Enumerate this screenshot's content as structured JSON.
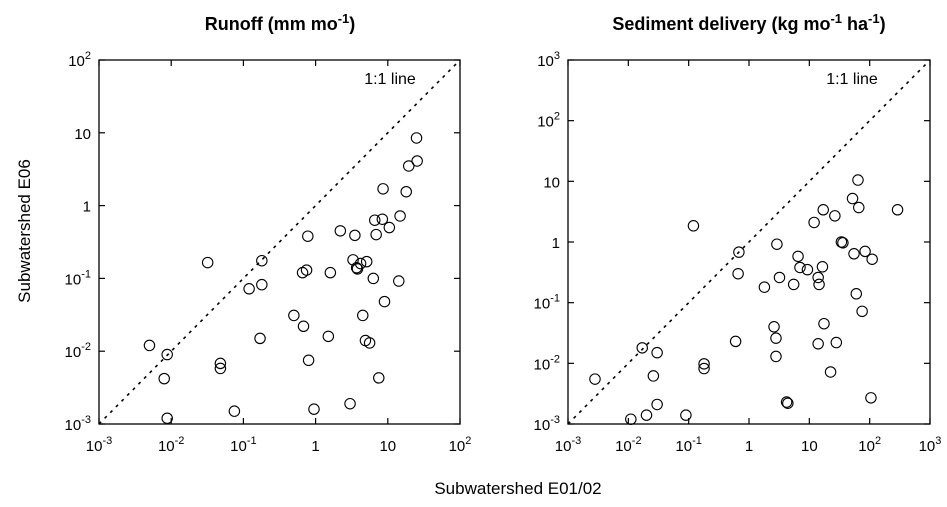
{
  "figure": {
    "xlabel": "Subwatershed E01/02",
    "ylabel": "Subwatershed E06"
  },
  "chart_data": [
    {
      "type": "scatter",
      "title": "Runoff (mm mo",
      "title_sup": "-1",
      "title_end": ")",
      "xscale": "log",
      "yscale": "log",
      "xlim": [
        0.001,
        100
      ],
      "ylim": [
        0.001,
        100
      ],
      "x_ticks": [
        {
          "base": "10",
          "exp": "-3"
        },
        {
          "base": "10",
          "exp": "-2"
        },
        {
          "base": "10",
          "exp": "-1"
        },
        {
          "base": "1",
          "exp": ""
        },
        {
          "base": "10",
          "exp": ""
        },
        {
          "base": "10",
          "exp": "2"
        }
      ],
      "y_ticks": [
        {
          "base": "10",
          "exp": "-3"
        },
        {
          "base": "10",
          "exp": "-2"
        },
        {
          "base": "10",
          "exp": "-1"
        },
        {
          "base": "1",
          "exp": ""
        },
        {
          "base": "10",
          "exp": ""
        },
        {
          "base": "10",
          "exp": "2"
        }
      ],
      "reference_line": "1:1 line",
      "points": [
        [
          0.005,
          0.012
        ],
        [
          0.008,
          0.0042
        ],
        [
          0.0088,
          0.009
        ],
        [
          0.0088,
          0.0012
        ],
        [
          0.032,
          0.165
        ],
        [
          0.048,
          0.0068
        ],
        [
          0.048,
          0.0058
        ],
        [
          0.075,
          0.0015
        ],
        [
          0.12,
          0.072
        ],
        [
          0.17,
          0.015
        ],
        [
          0.18,
          0.082
        ],
        [
          0.18,
          0.175
        ],
        [
          0.5,
          0.031
        ],
        [
          0.66,
          0.12
        ],
        [
          0.68,
          0.022
        ],
        [
          0.75,
          0.13
        ],
        [
          0.78,
          0.38
        ],
        [
          0.8,
          0.0075
        ],
        [
          0.95,
          0.0016
        ],
        [
          1.5,
          0.016
        ],
        [
          1.6,
          0.12
        ],
        [
          2.2,
          0.45
        ],
        [
          3.0,
          0.0019
        ],
        [
          3.3,
          0.18
        ],
        [
          3.5,
          0.39
        ],
        [
          3.7,
          0.14
        ],
        [
          3.8,
          0.135
        ],
        [
          4.2,
          0.16
        ],
        [
          4.5,
          0.031
        ],
        [
          4.9,
          0.014
        ],
        [
          5.1,
          0.17
        ],
        [
          5.6,
          0.013
        ],
        [
          6.3,
          0.1
        ],
        [
          6.6,
          0.63
        ],
        [
          6.9,
          0.4
        ],
        [
          7.5,
          0.0043
        ],
        [
          8.4,
          0.65
        ],
        [
          8.6,
          1.7
        ],
        [
          9.0,
          0.048
        ],
        [
          10.5,
          0.5
        ],
        [
          14.2,
          0.092
        ],
        [
          14.8,
          0.72
        ],
        [
          18.0,
          1.55
        ],
        [
          19.5,
          3.5
        ],
        [
          25.0,
          8.5
        ],
        [
          25.5,
          4.1
        ]
      ]
    },
    {
      "type": "scatter",
      "title": "Sediment delivery (kg mo",
      "title_sup": "-1",
      "title_mid": " ha",
      "title_sup2": "-1",
      "title_end": ")",
      "xscale": "log",
      "yscale": "log",
      "xlim": [
        0.001,
        1000
      ],
      "ylim": [
        0.001,
        1000
      ],
      "x_ticks": [
        {
          "base": "10",
          "exp": "-3"
        },
        {
          "base": "10",
          "exp": "-2"
        },
        {
          "base": "10",
          "exp": "-1"
        },
        {
          "base": "1",
          "exp": ""
        },
        {
          "base": "10",
          "exp": ""
        },
        {
          "base": "10",
          "exp": "2"
        },
        {
          "base": "10",
          "exp": "3"
        }
      ],
      "y_ticks": [
        {
          "base": "10",
          "exp": "-3"
        },
        {
          "base": "10",
          "exp": "-2"
        },
        {
          "base": "10",
          "exp": "-1"
        },
        {
          "base": "1",
          "exp": ""
        },
        {
          "base": "10",
          "exp": ""
        },
        {
          "base": "10",
          "exp": "2"
        },
        {
          "base": "10",
          "exp": "3"
        }
      ],
      "reference_line": "1:1 line",
      "points": [
        [
          0.0028,
          0.0055
        ],
        [
          0.011,
          0.0012
        ],
        [
          0.017,
          0.018
        ],
        [
          0.02,
          0.0014
        ],
        [
          0.026,
          0.0062
        ],
        [
          0.03,
          0.015
        ],
        [
          0.03,
          0.0021
        ],
        [
          0.09,
          0.0014
        ],
        [
          0.12,
          1.85
        ],
        [
          0.18,
          0.0098
        ],
        [
          0.18,
          0.0082
        ],
        [
          0.6,
          0.023
        ],
        [
          0.66,
          0.3
        ],
        [
          0.68,
          0.68
        ],
        [
          1.8,
          0.18
        ],
        [
          2.6,
          0.04
        ],
        [
          2.8,
          0.026
        ],
        [
          2.8,
          0.013
        ],
        [
          2.9,
          0.92
        ],
        [
          3.2,
          0.26
        ],
        [
          4.2,
          0.0023
        ],
        [
          4.4,
          0.0022
        ],
        [
          5.5,
          0.2
        ],
        [
          6.5,
          0.58
        ],
        [
          7.0,
          0.38
        ],
        [
          9.3,
          0.35
        ],
        [
          12.0,
          2.1
        ],
        [
          14.0,
          0.26
        ],
        [
          14.0,
          0.021
        ],
        [
          14.5,
          0.2
        ],
        [
          16.5,
          0.39
        ],
        [
          17.0,
          3.4
        ],
        [
          17.5,
          0.045
        ],
        [
          22.5,
          0.0072
        ],
        [
          26.5,
          2.7
        ],
        [
          28.0,
          0.022
        ],
        [
          34.0,
          1.0
        ],
        [
          36.0,
          0.97
        ],
        [
          52.0,
          5.2
        ],
        [
          55.0,
          0.64
        ],
        [
          60.0,
          0.14
        ],
        [
          64.0,
          10.5
        ],
        [
          66.0,
          3.7
        ],
        [
          75.0,
          0.072
        ],
        [
          84.0,
          0.7
        ],
        [
          105.0,
          0.0027
        ],
        [
          110.0,
          0.52
        ],
        [
          290.0,
          3.4
        ]
      ]
    }
  ]
}
